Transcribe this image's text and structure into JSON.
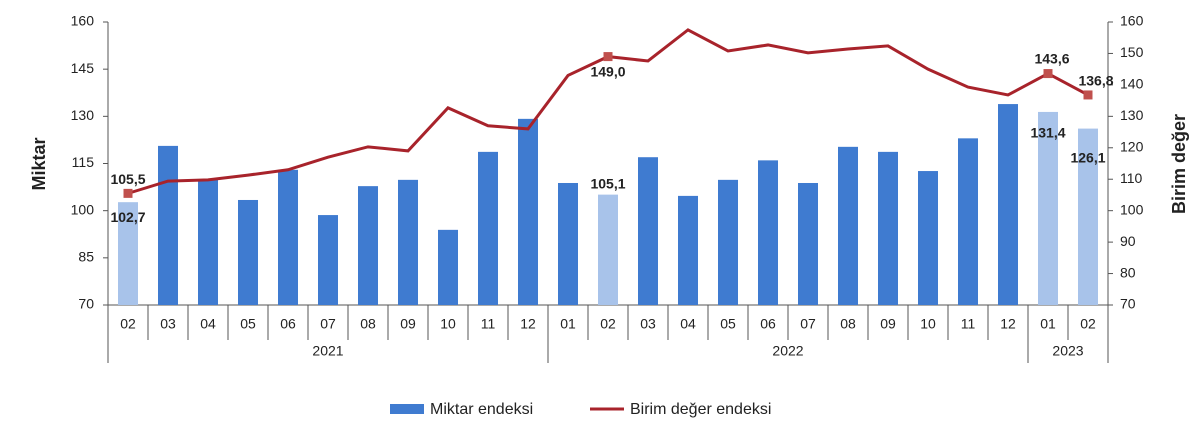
{
  "chart_data": {
    "type": "bar_line",
    "categories": [
      "02",
      "03",
      "04",
      "05",
      "06",
      "07",
      "08",
      "09",
      "10",
      "11",
      "12",
      "01",
      "02",
      "03",
      "04",
      "05",
      "06",
      "07",
      "08",
      "09",
      "10",
      "11",
      "12",
      "01",
      "02"
    ],
    "x_groups": [
      {
        "label": "2021",
        "categories": 11
      },
      {
        "label": "2022",
        "categories": 12
      },
      {
        "label": "2023",
        "categories": 2
      }
    ],
    "y_label": "Miktar",
    "y2_label": "Birim değer",
    "ylim": [
      70,
      160
    ],
    "yticks": [
      70,
      85,
      100,
      115,
      130,
      145,
      160
    ],
    "y2lim": [
      70,
      160
    ],
    "y2ticks": [
      70,
      80,
      90,
      100,
      110,
      120,
      130,
      140,
      150,
      160
    ],
    "legend": "bottom",
    "series": [
      {
        "name": "Miktar endeksi",
        "type": "bar",
        "color": "#3f7bd0",
        "highlight_color": "#a8c3ea",
        "highlighted": [
          0,
          12,
          23,
          24
        ],
        "values": [
          102.7,
          120.6,
          110,
          103.4,
          113,
          98.6,
          107.8,
          109.8,
          93.9,
          118.7,
          129.2,
          108.8,
          105.1,
          117,
          104.7,
          109.8,
          116,
          108.8,
          120.3,
          118.7,
          112.6,
          123,
          133.9,
          131.4,
          126.1
        ],
        "value_labels": [
          "102,7",
          null,
          null,
          null,
          null,
          null,
          null,
          null,
          null,
          null,
          null,
          null,
          "105,1",
          null,
          null,
          null,
          null,
          null,
          null,
          null,
          null,
          null,
          null,
          "131,4",
          "126,1"
        ]
      },
      {
        "name": "Birim değer endeksi",
        "type": "line",
        "axis": "y2",
        "color": "#a8232b",
        "marker_color": "#c0504d",
        "values": [
          105.5,
          109.4,
          109.8,
          111.3,
          113,
          117,
          120.3,
          119,
          132.7,
          127,
          126,
          143,
          149.0,
          147.6,
          157.5,
          150.8,
          152.7,
          150.2,
          151.4,
          152.4,
          145,
          139.3,
          136.8,
          143.6,
          136.8
        ],
        "value_labels": [
          "105,5",
          null,
          null,
          null,
          null,
          null,
          null,
          null,
          null,
          null,
          null,
          null,
          "149,0",
          null,
          null,
          null,
          null,
          null,
          null,
          null,
          null,
          null,
          null,
          "143,6",
          "136,8"
        ]
      }
    ]
  }
}
